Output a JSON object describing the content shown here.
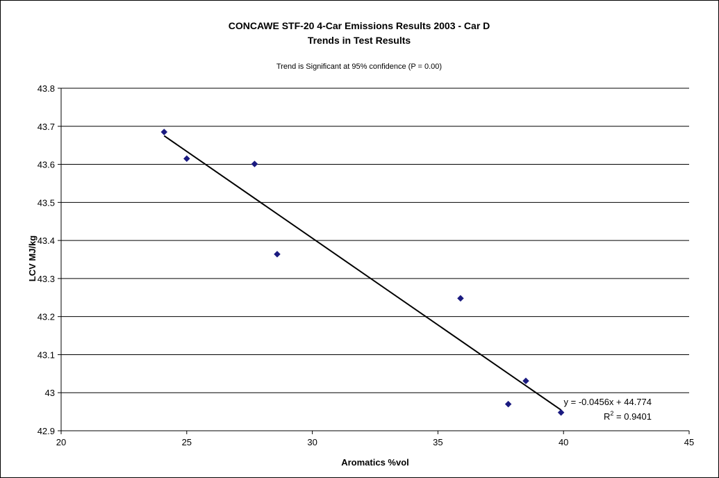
{
  "chart_data": {
    "type": "scatter",
    "title": "CONCAWE STF-20 4-Car Emissions Results 2003 - Car D",
    "subtitle": "Trends in Test Results",
    "note": "Trend is Significant at 95% confidence (P = 0.00)",
    "xlabel": "Aromatics %vol",
    "ylabel": "LCV MJ/kg",
    "xlim": [
      20,
      45
    ],
    "ylim": [
      42.9,
      43.8
    ],
    "xticks": [
      20,
      25,
      30,
      35,
      40,
      45
    ],
    "yticks": [
      42.9,
      43,
      43.1,
      43.2,
      43.3,
      43.4,
      43.5,
      43.6,
      43.7,
      43.8
    ],
    "ytick_labels": [
      "42.9",
      "43",
      "43.1",
      "43.2",
      "43.3",
      "43.4",
      "43.5",
      "43.6",
      "43.7",
      "43.8"
    ],
    "grid": "horizontal",
    "series": [
      {
        "marker": "diamond",
        "color": "#1a1a80",
        "points": [
          {
            "x": 24.1,
            "y": 43.685
          },
          {
            "x": 25.0,
            "y": 43.615
          },
          {
            "x": 27.7,
            "y": 43.601
          },
          {
            "x": 28.6,
            "y": 43.364
          },
          {
            "x": 35.9,
            "y": 43.248
          },
          {
            "x": 37.8,
            "y": 42.97
          },
          {
            "x": 38.5,
            "y": 43.031
          },
          {
            "x": 39.9,
            "y": 42.948
          }
        ]
      }
    ],
    "trendline": {
      "slope": -0.0456,
      "intercept": 44.774,
      "x_range": [
        24.1,
        39.9
      ],
      "color": "#000000",
      "equation": "y = -0.0456x + 44.774",
      "r2_label": "R",
      "r2_exp": "2",
      "r2_value": " = 0.9401"
    }
  }
}
